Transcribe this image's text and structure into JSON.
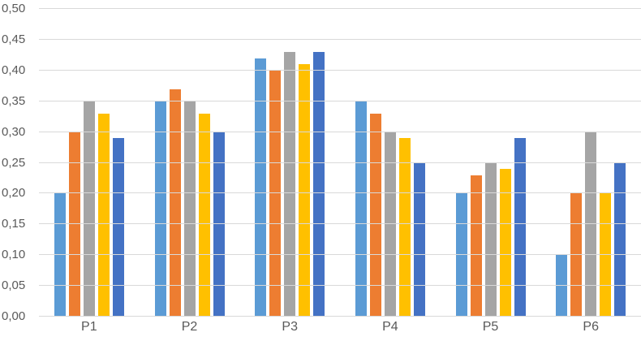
{
  "chart_data": {
    "type": "bar",
    "title": "",
    "categories": [
      "P1",
      "P2",
      "P3",
      "P4",
      "P5",
      "P6"
    ],
    "series": [
      {
        "name": "series-1-light-blue",
        "color": "#5B9BD5",
        "values": [
          0.2,
          0.35,
          0.42,
          0.35,
          0.2,
          0.1
        ]
      },
      {
        "name": "series-2-orange",
        "color": "#ED7D31",
        "values": [
          0.3,
          0.37,
          0.4,
          0.33,
          0.23,
          0.2
        ]
      },
      {
        "name": "series-3-gray",
        "color": "#A5A5A5",
        "values": [
          0.35,
          0.35,
          0.43,
          0.3,
          0.25,
          0.3
        ]
      },
      {
        "name": "series-4-yellow",
        "color": "#FFC000",
        "values": [
          0.33,
          0.33,
          0.41,
          0.29,
          0.24,
          0.2
        ]
      },
      {
        "name": "series-5-dark-blue",
        "color": "#4472C4",
        "values": [
          0.29,
          0.3,
          0.43,
          0.25,
          0.29,
          0.25
        ]
      }
    ],
    "xlabel": "",
    "ylabel": "",
    "ylim": [
      0,
      0.5
    ],
    "ytick_step": 0.05,
    "ytick_labels": [
      "0,00",
      "0,05",
      "0,10",
      "0,15",
      "0,20",
      "0,25",
      "0,30",
      "0,35",
      "0,40",
      "0,45",
      "0,50"
    ],
    "decimal_separator": ",",
    "grid": true,
    "legend": false,
    "colors": {
      "gridline": "#d9d9d9",
      "axis_line": "#d9d9d9",
      "tick_text": "#595959",
      "background": "#ffffff"
    }
  }
}
